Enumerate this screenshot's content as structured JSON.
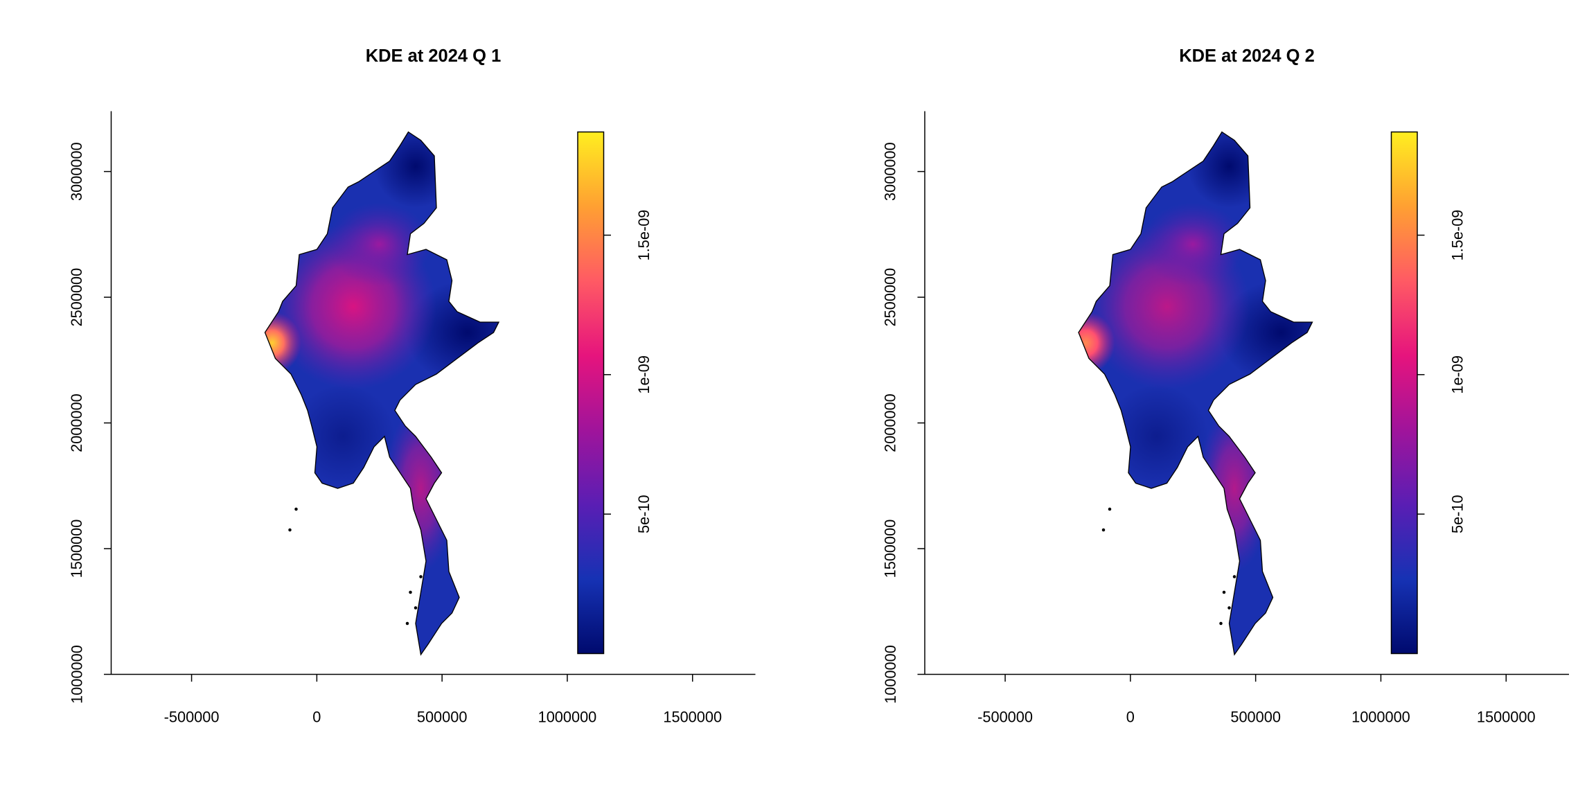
{
  "chart_data": [
    {
      "type": "map",
      "title": "KDE at 2024 Q 1",
      "xlim": [
        -821000,
        1751000
      ],
      "xticks": [
        -500000,
        0,
        500000,
        1000000,
        1500000
      ],
      "ylim": [
        1000000,
        3240000
      ],
      "yticks": [
        1000000,
        1500000,
        2000000,
        2500000,
        3000000
      ],
      "zlim": [
        0,
        1.87e-09
      ],
      "zticks": [
        5e-10,
        {
          "value": 1e-09,
          "label": "1e-09"
        },
        {
          "value": 1.5e-09,
          "label": "1.5e-09"
        }
      ],
      "colors": [
        "#000a6e",
        "#1632b4",
        "#5a1eb4",
        "#a0149b",
        "#e6147d",
        "#ff5a64",
        "#ffa032",
        "#ffee20"
      ]
    },
    {
      "type": "map",
      "title": "KDE at 2024 Q 2",
      "xlim": [
        -821000,
        1751000
      ],
      "xticks": [
        -500000,
        0,
        500000,
        1000000,
        1500000
      ],
      "ylim": [
        1000000,
        3240000
      ],
      "yticks": [
        1000000,
        1500000,
        2000000,
        2500000,
        3000000
      ],
      "zlim": [
        0,
        1.87e-09
      ],
      "zticks": [
        5e-10,
        {
          "value": 1e-09,
          "label": "1e-09"
        },
        {
          "value": 1.5e-09,
          "label": "1.5e-09"
        }
      ],
      "colors": [
        "#000a6e",
        "#1632b4",
        "#5a1eb4",
        "#a0149b",
        "#e6147d",
        "#ff5a64",
        "#ffa032",
        "#ffee20"
      ]
    }
  ]
}
